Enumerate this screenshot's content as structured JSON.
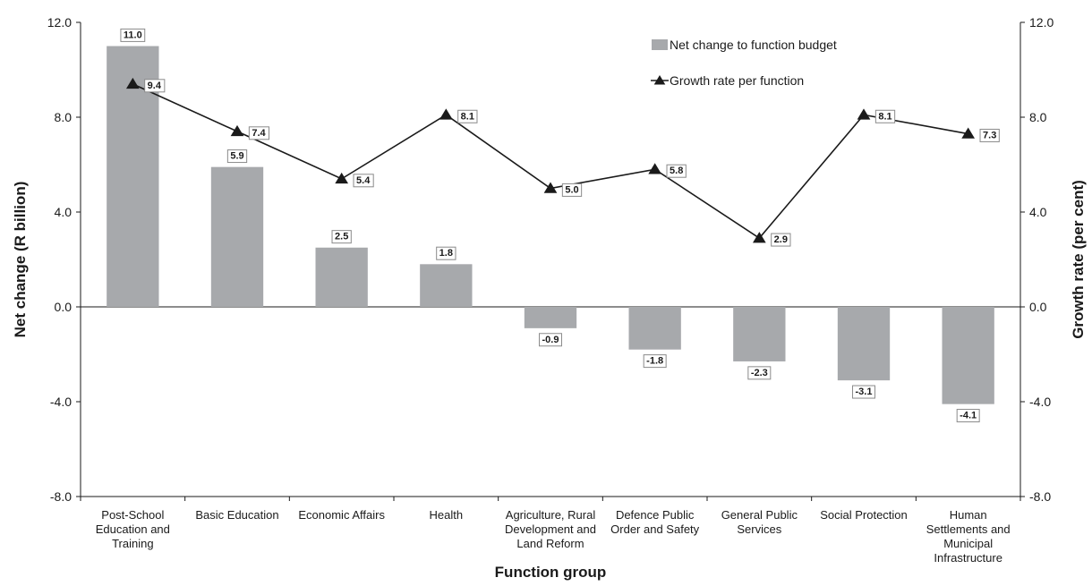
{
  "chart_data": {
    "type": "bar",
    "categories": [
      [
        "Post-School",
        "Education and",
        "Training"
      ],
      [
        "Basic Education"
      ],
      [
        "Economic Affairs"
      ],
      [
        "Health"
      ],
      [
        "Agriculture, Rural",
        "Development and",
        "Land Reform"
      ],
      [
        "Defence Public",
        "Order and Safety"
      ],
      [
        "General Public",
        "Services"
      ],
      [
        "Social Protection"
      ],
      [
        "Human",
        "Settlements and",
        "Municipal",
        "Infrastructure"
      ]
    ],
    "series": [
      {
        "name": "Net change to function budget",
        "type": "bar",
        "axis": "left",
        "color": "#a7a9ac",
        "values": [
          11.0,
          5.9,
          2.5,
          1.8,
          -0.9,
          -1.8,
          -2.3,
          -3.1,
          -4.1
        ],
        "labels": [
          "11.0",
          "5.9",
          "2.5",
          "1.8",
          "-0.9",
          "-1.8",
          "-2.3",
          "-3.1",
          "-4.1"
        ]
      },
      {
        "name": "Growth rate per function",
        "type": "line",
        "axis": "right",
        "marker": "triangle",
        "color": "#1a1a1a",
        "values": [
          9.4,
          7.4,
          5.4,
          8.1,
          5.0,
          5.8,
          2.9,
          8.1,
          7.3
        ],
        "labels": [
          "9.4",
          "7.4",
          "5.4",
          "8.1",
          "5.0",
          "5.8",
          "2.9",
          "8.1",
          "7.3"
        ]
      }
    ],
    "xlabel": "Function group",
    "ylabel": "Net change (R billion)",
    "y2label": "Growth rate (per cent)",
    "ylim": [
      -8,
      12
    ],
    "y2lim": [
      -8,
      12
    ],
    "yticks": [
      "12.0",
      "8.0",
      "4.0",
      "0.0",
      "-4.0",
      "-8.0"
    ],
    "y2ticks": [
      "12.0",
      "8.0",
      "4.0",
      "0.0",
      "-4.0",
      "-8.0"
    ],
    "grid": false,
    "legend_position": "top-right"
  }
}
